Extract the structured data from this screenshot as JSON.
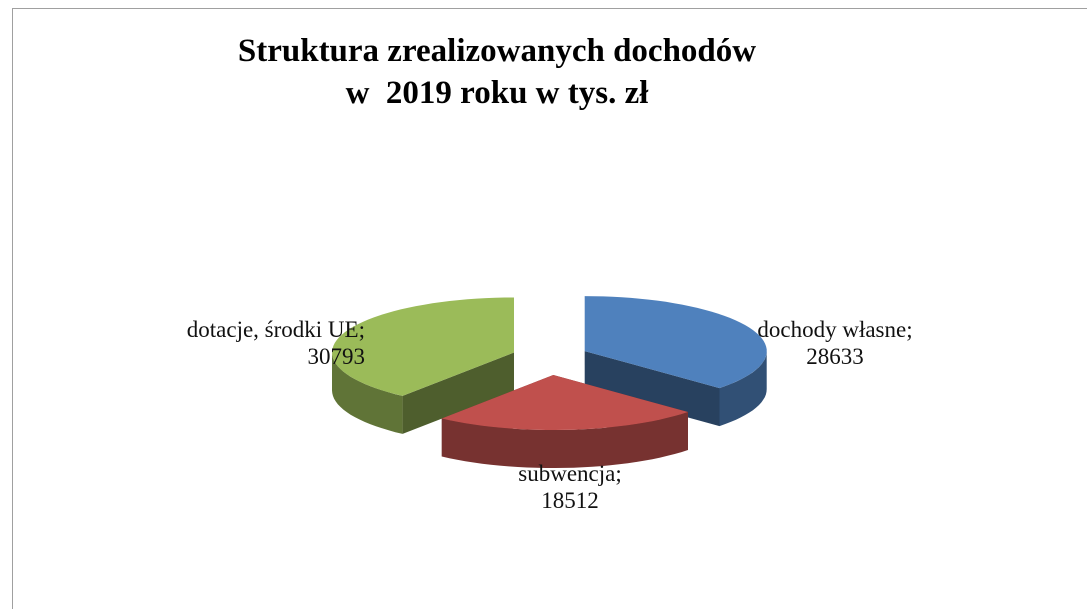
{
  "chart_data": {
    "type": "pie3d",
    "title": "Struktura zrealizowanych dochodów\nw  2019 roku w tys. zł",
    "categories": [
      "dochody własne;",
      "subwencja;",
      "dotacje, środki UE;"
    ],
    "values": [
      28633,
      18512,
      30793
    ],
    "colors": [
      "#4f81bd",
      "#c0504d",
      "#9bbb59"
    ]
  }
}
